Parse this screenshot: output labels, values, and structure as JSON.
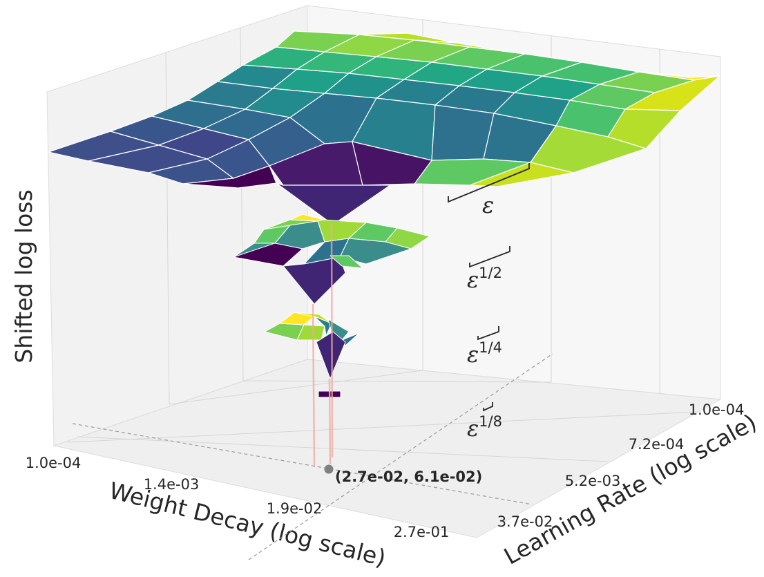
{
  "chart_data": {
    "type": "surface3d",
    "title": "",
    "xlabel": "Weight Decay (log scale)",
    "ylabel": "Learning Rate (log scale)",
    "zlabel": "Shifted log loss",
    "x_ticks": [
      "1.0e-04",
      "1.4e-03",
      "1.9e-02",
      "2.7e-01"
    ],
    "y_ticks": [
      "1.0e-04",
      "7.2e-04",
      "5.2e-03",
      "3.7e-02"
    ],
    "x_scale": "log",
    "y_scale": "log",
    "grid": true,
    "optimum": {
      "weight_decay": 0.027,
      "learning_rate": 0.061,
      "label": "(2.7e-02, 6.1e-02)"
    },
    "levels": [
      {
        "name": "ε",
        "base": "ε",
        "exp": ""
      },
      {
        "name": "ε^1/2",
        "base": "ε",
        "exp": "1/2"
      },
      {
        "name": "ε^1/4",
        "base": "ε",
        "exp": "1/4"
      },
      {
        "name": "ε^1/8",
        "base": "ε",
        "exp": "1/8"
      }
    ],
    "colormap": [
      "#440154",
      "#3b528b",
      "#21918c",
      "#5ec962",
      "#fde725"
    ]
  }
}
